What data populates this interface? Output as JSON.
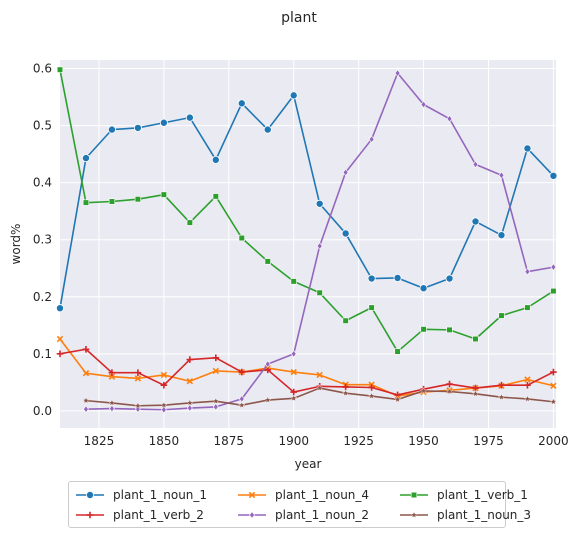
{
  "chart_data": {
    "type": "line",
    "title": "plant",
    "xlabel": "year",
    "ylabel": "word%",
    "xlim": [
      1810,
      2001
    ],
    "ylim": [
      -0.03,
      0.615
    ],
    "xticks": [
      1825,
      1850,
      1875,
      1900,
      1925,
      1950,
      1975,
      2000
    ],
    "yticks": [
      0.0,
      0.1,
      0.2,
      0.3,
      0.4,
      0.5,
      0.6
    ],
    "grid": true,
    "legend_position": "bottom-center",
    "series": [
      {
        "name": "plant_1_noun_1",
        "color": "#1f77b4",
        "marker": "circle",
        "x": [
          1810,
          1820,
          1830,
          1840,
          1850,
          1860,
          1870,
          1880,
          1890,
          1900,
          1910,
          1920,
          1930,
          1940,
          1950,
          1960,
          1970,
          1980,
          1990,
          2000
        ],
        "y": [
          0.18,
          0.443,
          0.493,
          0.496,
          0.505,
          0.514,
          0.44,
          0.539,
          0.493,
          0.553,
          0.363,
          0.311,
          0.232,
          0.233,
          0.215,
          0.232,
          0.332,
          0.308,
          0.46,
          0.412
        ]
      },
      {
        "name": "plant_1_noun_4",
        "color": "#ff7f0e",
        "marker": "x",
        "x": [
          1810,
          1820,
          1830,
          1840,
          1850,
          1860,
          1870,
          1880,
          1890,
          1900,
          1910,
          1920,
          1930,
          1940,
          1950,
          1960,
          1970,
          1980,
          1990,
          2000
        ],
        "y": [
          0.126,
          0.066,
          0.06,
          0.057,
          0.063,
          0.052,
          0.07,
          0.068,
          0.075,
          0.068,
          0.063,
          0.046,
          0.046,
          0.026,
          0.033,
          0.036,
          0.04,
          0.044,
          0.055,
          0.044
        ]
      },
      {
        "name": "plant_1_verb_1",
        "color": "#2ca02c",
        "marker": "square",
        "x": [
          1810,
          1820,
          1830,
          1840,
          1850,
          1860,
          1870,
          1880,
          1890,
          1900,
          1910,
          1920,
          1930,
          1940,
          1950,
          1960,
          1970,
          1980,
          1990,
          2000
        ],
        "y": [
          0.598,
          0.365,
          0.367,
          0.371,
          0.379,
          0.33,
          0.376,
          0.303,
          0.262,
          0.227,
          0.207,
          0.158,
          0.181,
          0.104,
          0.143,
          0.142,
          0.126,
          0.167,
          0.181,
          0.21
        ]
      },
      {
        "name": "plant_1_verb_2",
        "color": "#d62728",
        "marker": "plus",
        "x": [
          1810,
          1820,
          1830,
          1840,
          1850,
          1860,
          1870,
          1880,
          1890,
          1900,
          1910,
          1920,
          1930,
          1940,
          1950,
          1960,
          1970,
          1980,
          1990,
          2000
        ],
        "y": [
          0.1,
          0.108,
          0.067,
          0.067,
          0.045,
          0.09,
          0.093,
          0.068,
          0.072,
          0.033,
          0.043,
          0.042,
          0.041,
          0.028,
          0.038,
          0.047,
          0.04,
          0.045,
          0.045,
          0.068
        ]
      },
      {
        "name": "plant_1_noun_2",
        "color": "#9467bd",
        "marker": "diamond",
        "x": [
          1820,
          1830,
          1840,
          1850,
          1860,
          1870,
          1880,
          1890,
          1900,
          1910,
          1920,
          1930,
          1940,
          1950,
          1960,
          1970,
          1980,
          1990,
          2000
        ],
        "y": [
          0.003,
          0.004,
          0.003,
          0.002,
          0.005,
          0.007,
          0.021,
          0.082,
          0.1,
          0.289,
          0.418,
          0.476,
          0.592,
          0.537,
          0.512,
          0.432,
          0.413,
          0.244,
          0.252
        ]
      },
      {
        "name": "plant_1_noun_3",
        "color": "#8c564b",
        "marker": "star",
        "x": [
          1820,
          1830,
          1840,
          1850,
          1860,
          1870,
          1880,
          1890,
          1900,
          1910,
          1920,
          1930,
          1940,
          1950,
          1960,
          1970,
          1980,
          1990,
          2000
        ],
        "y": [
          0.018,
          0.014,
          0.009,
          0.01,
          0.014,
          0.017,
          0.01,
          0.019,
          0.022,
          0.04,
          0.031,
          0.026,
          0.02,
          0.035,
          0.034,
          0.03,
          0.024,
          0.021,
          0.016
        ]
      }
    ],
    "legend_order": [
      0,
      1,
      2,
      3,
      4,
      5
    ]
  }
}
